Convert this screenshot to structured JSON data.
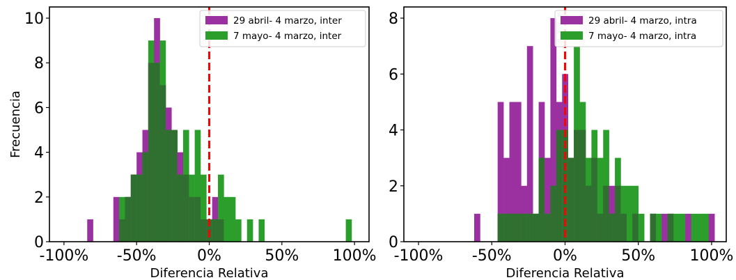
{
  "colors": {
    "series_a": "#9b30a0",
    "series_b": "#2c9e2c",
    "overlap": "#2f6f2f",
    "zero_line": "#ff0000"
  },
  "chart_data": [
    {
      "type": "histogram",
      "xlabel": "Diferencia Relativa",
      "ylabel": "Frecuencia",
      "xlim": [
        -110,
        110
      ],
      "ylim": [
        0,
        10.5
      ],
      "xticks": [
        -100,
        -50,
        0,
        50,
        100
      ],
      "xtick_labels": [
        "-100%",
        "-50%",
        "0%",
        "50%",
        "100%"
      ],
      "yticks": [
        0,
        2,
        4,
        6,
        8,
        10
      ],
      "ytick_labels": [
        "0",
        "2",
        "4",
        "6",
        "8",
        "10"
      ],
      "bin_width": 4,
      "reference_line": {
        "x": 0,
        "style": "dashed",
        "color": "#ff0000"
      },
      "legend_position": "top-right",
      "series": [
        {
          "name": "29 abril- 4 marzo, inter",
          "bins": [
            [
              -84,
              1
            ],
            [
              -66,
              2
            ],
            [
              -62,
              1
            ],
            [
              -58,
              2
            ],
            [
              -54,
              3
            ],
            [
              -50,
              4
            ],
            [
              -46,
              5
            ],
            [
              -42,
              8
            ],
            [
              -38,
              10
            ],
            [
              -34,
              7
            ],
            [
              -30,
              6
            ],
            [
              -26,
              5
            ],
            [
              -22,
              4
            ],
            [
              -18,
              3
            ],
            [
              -14,
              2
            ],
            [
              -10,
              2
            ],
            [
              -6,
              1
            ],
            [
              -2,
              1
            ],
            [
              2,
              2
            ],
            [
              6,
              1
            ]
          ]
        },
        {
          "name": "7 mayo- 4 marzo, inter",
          "bins": [
            [
              -62,
              2
            ],
            [
              -58,
              2
            ],
            [
              -54,
              3
            ],
            [
              -50,
              3
            ],
            [
              -46,
              4
            ],
            [
              -42,
              9
            ],
            [
              -38,
              8
            ],
            [
              -34,
              9
            ],
            [
              -30,
              5
            ],
            [
              -26,
              5
            ],
            [
              -22,
              3
            ],
            [
              -18,
              5
            ],
            [
              -14,
              3
            ],
            [
              -10,
              5
            ],
            [
              -6,
              3
            ],
            [
              -2,
              1
            ],
            [
              2,
              1
            ],
            [
              6,
              3
            ],
            [
              10,
              2
            ],
            [
              14,
              2
            ],
            [
              18,
              1
            ],
            [
              26,
              1
            ],
            [
              34,
              1
            ],
            [
              94,
              1
            ]
          ]
        }
      ]
    },
    {
      "type": "histogram",
      "xlabel": "Diferencia Relativa",
      "ylabel": "",
      "xlim": [
        -110,
        110
      ],
      "ylim": [
        0,
        8.4
      ],
      "xticks": [
        -100,
        -50,
        0,
        50,
        100
      ],
      "xtick_labels": [
        "-100%",
        "-50%",
        "0%",
        "50%",
        "100%"
      ],
      "yticks": [
        0,
        2,
        4,
        6,
        8
      ],
      "ytick_labels": [
        "0",
        "2",
        "4",
        "6",
        "8"
      ],
      "bin_width": 4,
      "reference_line": {
        "x": 0,
        "style": "dashed",
        "color": "#ff0000"
      },
      "legend_position": "top-right",
      "series": [
        {
          "name": "29 abril- 4 marzo, intra",
          "bins": [
            [
              -62,
              1
            ],
            [
              -46,
              5
            ],
            [
              -42,
              3
            ],
            [
              -38,
              5
            ],
            [
              -34,
              5
            ],
            [
              -30,
              2
            ],
            [
              -26,
              7
            ],
            [
              -22,
              1
            ],
            [
              -18,
              5
            ],
            [
              -14,
              3
            ],
            [
              -10,
              8
            ],
            [
              -6,
              5
            ],
            [
              -2,
              6
            ],
            [
              2,
              3
            ],
            [
              6,
              4
            ],
            [
              10,
              4
            ],
            [
              14,
              2
            ],
            [
              18,
              3
            ],
            [
              22,
              1
            ],
            [
              26,
              2
            ],
            [
              30,
              2
            ],
            [
              34,
              2
            ],
            [
              38,
              1
            ],
            [
              46,
              1
            ],
            [
              58,
              1
            ],
            [
              66,
              1
            ],
            [
              70,
              1
            ],
            [
              82,
              1
            ],
            [
              98,
              1
            ]
          ]
        },
        {
          "name": "7 mayo- 4 marzo, intra",
          "bins": [
            [
              -46,
              1
            ],
            [
              -42,
              1
            ],
            [
              -38,
              1
            ],
            [
              -34,
              1
            ],
            [
              -30,
              1
            ],
            [
              -26,
              1
            ],
            [
              -22,
              1
            ],
            [
              -18,
              3
            ],
            [
              -14,
              1
            ],
            [
              -10,
              2
            ],
            [
              -6,
              4
            ],
            [
              -2,
              4
            ],
            [
              2,
              3
            ],
            [
              6,
              7
            ],
            [
              10,
              5
            ],
            [
              14,
              3
            ],
            [
              18,
              4
            ],
            [
              22,
              3
            ],
            [
              26,
              4
            ],
            [
              30,
              1
            ],
            [
              34,
              3
            ],
            [
              38,
              2
            ],
            [
              42,
              2
            ],
            [
              46,
              2
            ],
            [
              50,
              1
            ],
            [
              58,
              1
            ],
            [
              62,
              1
            ],
            [
              70,
              1
            ],
            [
              74,
              1
            ],
            [
              78,
              1
            ],
            [
              86,
              1
            ],
            [
              90,
              1
            ],
            [
              94,
              1
            ]
          ]
        }
      ]
    }
  ]
}
